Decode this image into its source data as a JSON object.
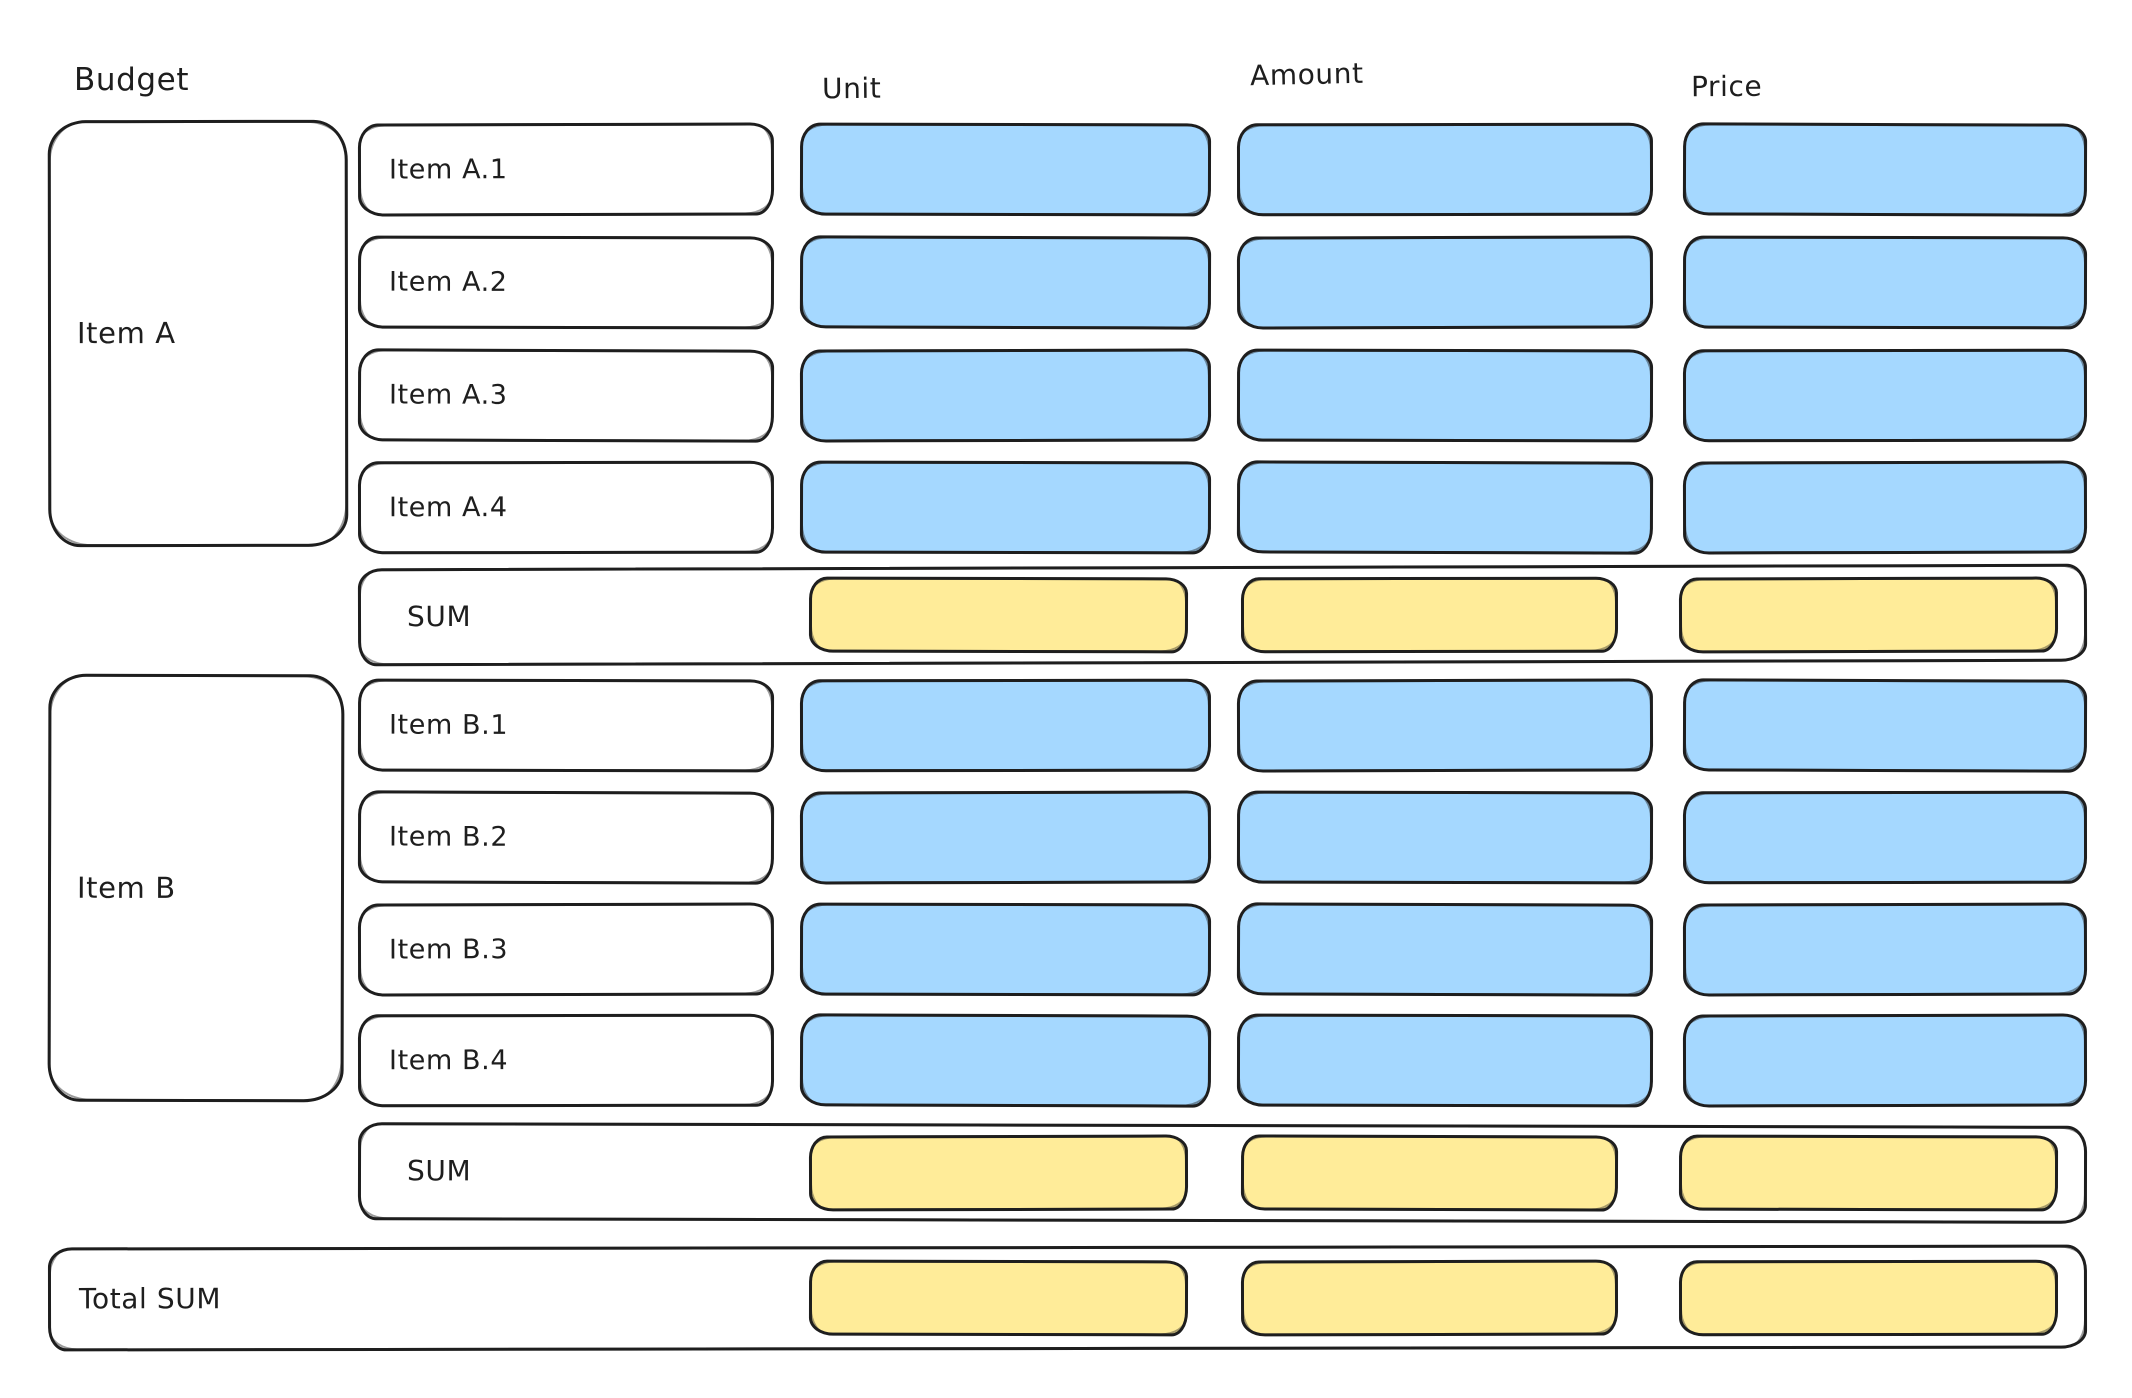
{
  "diagram": {
    "title": "Budget",
    "column_headers": [
      "Unit",
      "Amount",
      "Price"
    ],
    "groups": [
      {
        "label": "Item A",
        "rows": [
          "Item A.1",
          "Item A.2",
          "Item A.3",
          "Item A.4"
        ],
        "sum_label": "SUM"
      },
      {
        "label": "Item B",
        "rows": [
          "Item B.1",
          "Item B.2",
          "Item B.3",
          "Item B.4"
        ],
        "sum_label": "SUM"
      }
    ],
    "total_label": "Total SUM",
    "colors": {
      "value_cell_fill": "#a5d8ff",
      "sum_cell_fill": "#ffec99",
      "stroke": "#1e1e1e",
      "background": "#ffffff"
    }
  }
}
